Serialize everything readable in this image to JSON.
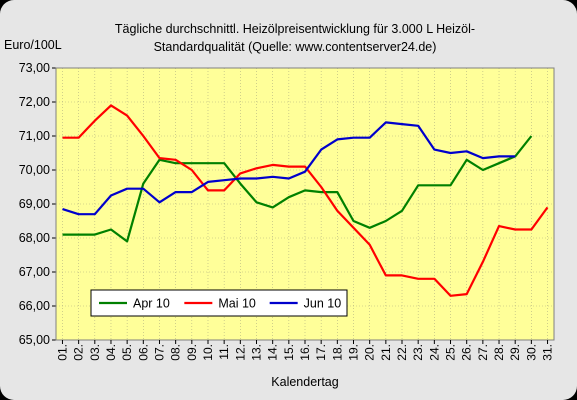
{
  "chart_data": {
    "type": "line",
    "title_lines": [
      "Tägliche durchschnittl. Heizölpreisentwicklung für 3.000 L Heizöl-",
      "Standardqualität (Quelle: www.contentserver24.de)"
    ],
    "ylabel": "Euro/100L",
    "xlabel": "Kalendertag",
    "ylim": [
      65,
      73
    ],
    "yticks": [
      "65,00",
      "66,00",
      "67,00",
      "68,00",
      "69,00",
      "70,00",
      "71,00",
      "72,00",
      "73,00"
    ],
    "categories": [
      "01.",
      "02.",
      "03.",
      "04.",
      "05.",
      "06.",
      "07.",
      "08.",
      "09.",
      "10.",
      "11.",
      "12.",
      "13.",
      "14.",
      "15.",
      "16.",
      "17.",
      "18.",
      "19.",
      "20.",
      "21.",
      "22.",
      "23.",
      "24.",
      "25.",
      "26.",
      "27.",
      "28.",
      "29.",
      "30.",
      "31."
    ],
    "grid": true,
    "legend_position": "bottom-left",
    "series": [
      {
        "name": "Apr 10",
        "color": "#008000",
        "values": [
          68.1,
          68.1,
          68.1,
          68.25,
          67.9,
          69.6,
          70.3,
          70.2,
          70.2,
          70.2,
          70.2,
          69.6,
          69.05,
          68.9,
          69.2,
          69.4,
          69.35,
          69.35,
          68.5,
          68.3,
          68.5,
          68.8,
          69.55,
          69.55,
          69.55,
          70.3,
          70.0,
          70.2,
          70.4,
          71.0,
          null
        ]
      },
      {
        "name": "Mai 10",
        "color": "#ff0000",
        "values": [
          70.95,
          70.95,
          71.45,
          71.9,
          71.6,
          71.0,
          70.35,
          70.3,
          70.0,
          69.4,
          69.4,
          69.9,
          70.05,
          70.15,
          70.1,
          70.1,
          69.5,
          68.8,
          68.3,
          67.8,
          66.9,
          66.9,
          66.8,
          66.8,
          66.3,
          66.35,
          67.3,
          68.35,
          68.25,
          68.25,
          68.9
        ]
      },
      {
        "name": "Jun 10",
        "color": "#0000cc",
        "values": [
          68.85,
          68.7,
          68.7,
          69.25,
          69.45,
          69.45,
          69.05,
          69.35,
          69.35,
          69.65,
          69.7,
          69.75,
          69.75,
          69.8,
          69.75,
          69.95,
          70.6,
          70.9,
          70.95,
          70.95,
          71.4,
          71.35,
          71.3,
          70.6,
          70.5,
          70.55,
          70.35,
          70.4,
          70.4,
          null,
          null
        ]
      }
    ]
  }
}
